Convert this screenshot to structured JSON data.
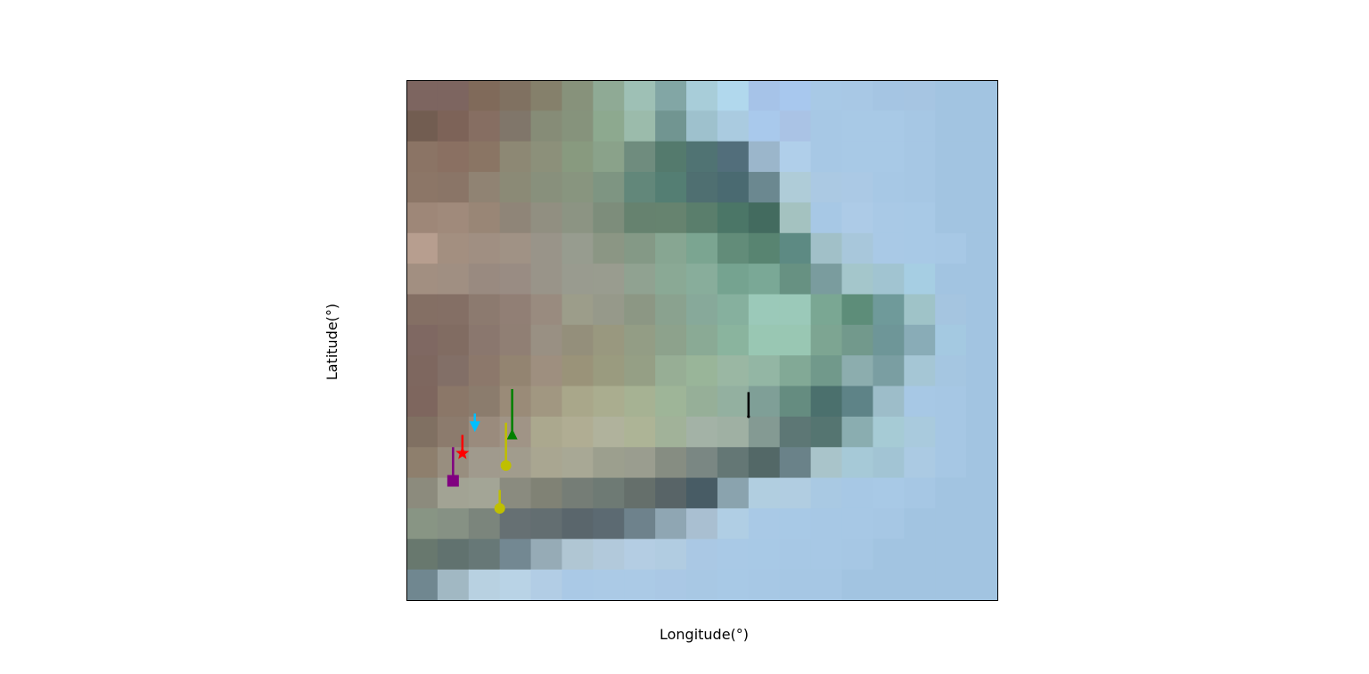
{
  "axes": {
    "xlabel": "Longitude(°)",
    "ylabel": "Latitude(°)"
  },
  "raster": {
    "cols": 19,
    "rows": 17,
    "rgb": [
      "#7d6560 #7d6560 #806a5a #807161 #85806b #87927b #8faa95 #9ec0b5 #82a6a5 #a8cdd9 #b1d8ed #a6c3e8 #a8c8ee #a8c9e6 #a8c8e5 #a5c5e3 #a6c5e2 #a2c4e1 #a2c4e1",
      "#725d51 #7d6358 #866e62 #80766a #868c77 #86937c #8da98f #9bbbab #719591 #9ec1cd #aacbe0 #a9c9ec #aac3e5 #a7c8e5 #a8c9e6 #a8c9e6 #a6c7e4 #a2c4e1 #a2c4e1",
      "#8b7465 #8a7062 #8a7564 #8d8874 #8c907a #889a7f #8aa28a #6f8c7e #547a6d #507373 #526e7b #9bb6cb #b0cfea #a7c8e5 #a8c9e6 #a8c9e6 #a6c7e4 #a2c4e1 #a2c4e1",
      "#8c7667 #8a7567 #908373 #8b8a76 #88907c #88957f #7e9582 #62877a #547e73 #4f6f71 #4a6a71 #6b8890 #afccd8 #abc9e3 #abc9e5 #a7c8e5 #a6c7e4 #a2c4e1 #a2c4e1",
      "#9e8778 #a08a7b #998676 #8f8578 #918f81 #8c9483 #7d8d7b #66826f #66836f #5a7e6c #4b7667 #436b5f #a4c2c0 #a7c8e5 #adcbe7 #a9c9e6 #a8c9e6 #a2c4e1 #a2c4e1",
      "#b79e8f #a38f80 #a08f82 #a09285 #999489 #979c8f #8b9684 #849986 #87a692 #7ba591 #628c79 #588471 #5d8a83 #a1c0c8 #a8c7db #a9c9e6 #a8c9e6 #a7c8e5 #a2c4e1",
      "#a28f81 #a08f82 #998a80 #998c83 #999489 #999b8f #999c8f #90a291 #8aa995 #88ad9b #75a390 #7aa896 #679182 #7a9c9e #a4c6cb #a1c4d1 #a6cee3 #a2c4e1 #a2c4e1",
      "#846f64 #846f65 #8c7a6f #917f75 #998b7f #9c9d8a #96998a #8c9784 #8aa28f #87a99a #86b09e #9bc9b9 #9bc9b9 #7aa793 #5d8d79 #6f9a9a #9fc3c8 #a5c5e0 #a2c4e1",
      "#7f6862 #816c62 #8a776e #907f74 #999083 #948f7b #99987f #939d85 #8da28c #8aaa95 #8ab49e #99c7b3 #99c7b3 #7da592 #72998c #6e9698 #89acb7 #a4c9e1 #a2c4e1",
      "#7e675f #826f67 #8c786b #938471 #9e8f7f #9a9379 #9a9b7f #959f85 #97ae95 #99b599 #9ab7a3 #93b6a4 #82a996 #71998b #8cadae #7a9ea2 #a5c6d5 #a5c6e1 #a2c4e1",
      "#7e665e #8b7768 #8b7c6d #9a8b78 #a19781 #a9a78a #aaad8f #a6b293 #9eb598 #96af98 #93b0a0 #7f9f97 #658c80 #4b706d #5e8387 #9dbdc9 #a7c8e5 #a6c7e4 #a2c4e1",
      "#807062 #8c7b6d #9a8b7d #a09486 #aba88e #b0ad93 #b0b29c #adb496 #a1b299 #a3b2a6 #9fb0a3 #849a93 #5d7775 #557571 #8aadb0 #a6cbd5 #a9cadd #a6c7e4 #a2c4e1",
      "#8e7f6d #988e7f #a09a8d #a19c8d #a9a691 #a8a895 #9c9f8e #9a9d8f #868d82 #7a8783 #647775 #536867 #6a8289 #a9c4ca #a6c9d7 #a2c4d4 #abcae3 #a6c7e4 #a2c4e1",
      "#8c8b7d #a2a394 #a3a596 #8a8b7f #808275 #757d76 #6e7a74 #656f6b #586467 #485c65 #8aa3ae #b1cee0 #b1cde1 #a9c9e3 #a7c8e5 #a8c9e6 #a6c7e4 #a2c4e1 #a2c4e1",
      "#889584 #869184 #7b857c #667073 #636e71 #5a666c #5c6a72 #6e828c #8fa6b3 #a9bfd1 #b0cee4 #a9c9e6 #a8c9e6 #a7c8e5 #a7c8e5 #a6c7e4 #a2c4e1 #a2c4e1 #a2c4e1",
      "#68786e #61726f #677877 #738892 #96abb6 #b0c6d3 #b2c9db #b4cde3 #b1cce1 #aac8e4 #a9c9e6 #a8c9e6 #a7c8e5 #a7c8e5 #a6c7e4 #a2c4e1 #a2c4e1 #a2c4e1 #a2c4e1",
      "#708790 #a1b8c3 #b8d1e1 #b9d3e6 #b2cde5 #aac9e6 #abcae6 #abcae6 #aac8e5 #a8c8e4 #a8c9e6 #a7c8e5 #a6c7e4 #a6c7e4 #a2c4e1 #a2c4e1 #a2c4e1 #a2c4e1 #a2c4e1"
    ]
  },
  "markers": [
    {
      "name": "purple-square-marker",
      "shape": "square",
      "color": "#800080",
      "col": 1.5,
      "row": 13.1,
      "stem": 1.1
    },
    {
      "name": "red-star-marker",
      "shape": "star",
      "color": "#ff0000",
      "col": 1.8,
      "row": 12.2,
      "stem": 0.6
    },
    {
      "name": "cyan-arrow-marker",
      "shape": "triangle-down",
      "color": "#00bfff",
      "col": 2.2,
      "row": 11.3,
      "stem": 0.4
    },
    {
      "name": "green-triangle-marker",
      "shape": "triangle-up",
      "color": "#008000",
      "col": 3.4,
      "row": 11.6,
      "stem": 1.5
    },
    {
      "name": "olive-circle-marker",
      "shape": "circle",
      "color": "#bfbf00",
      "col": 3.2,
      "row": 12.6,
      "stem": 1.4
    },
    {
      "name": "olive-circle-marker-2",
      "shape": "circle",
      "color": "#bfbf00",
      "col": 3.0,
      "row": 14.0,
      "stem": 0.6
    },
    {
      "name": "black-tick-marker",
      "shape": "tick",
      "color": "#000000",
      "col": 11.0,
      "row": 11.0,
      "stem": 0.8
    }
  ]
}
